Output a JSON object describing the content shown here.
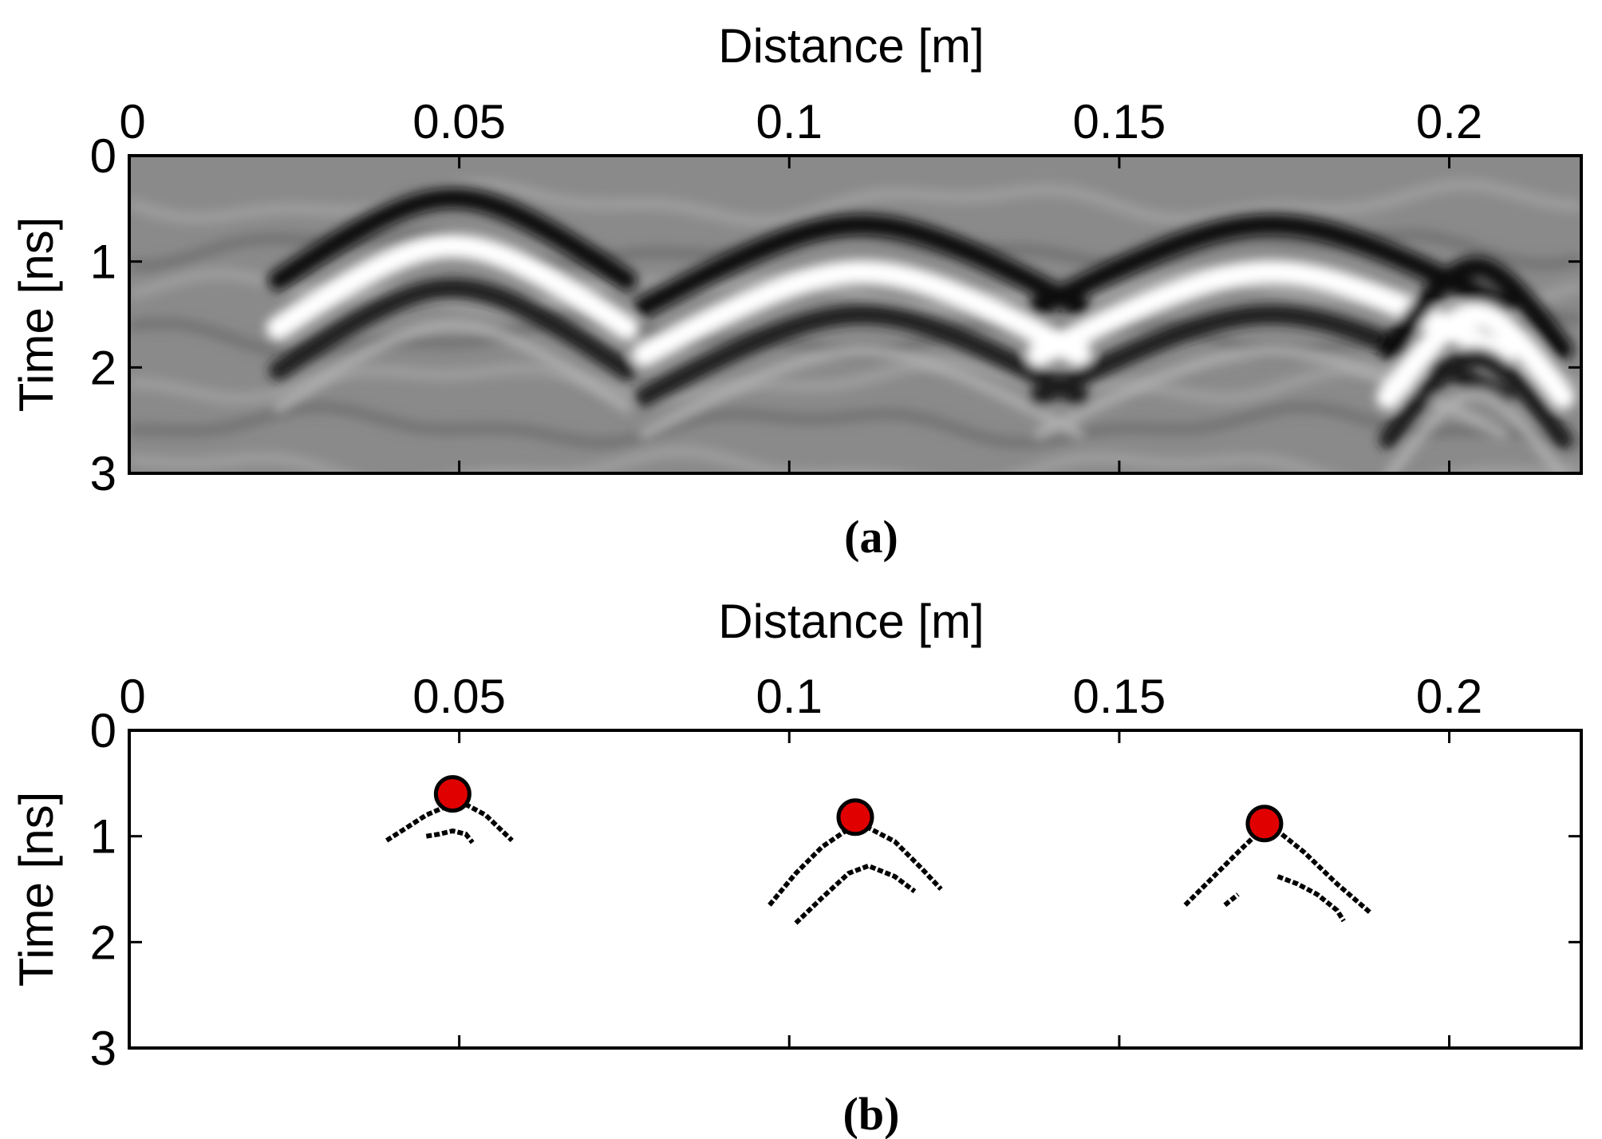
{
  "chart_data": [
    {
      "type": "heatmap",
      "panel_label": "(a)",
      "xlabel": "Distance [m]",
      "ylabel": "Time [ns]",
      "xlim": [
        0,
        0.22
      ],
      "ylim": [
        3,
        0
      ],
      "x_ticks": [
        0,
        0.05,
        0.1,
        0.15,
        0.2
      ],
      "x_tick_labels": [
        "0",
        "0.05",
        "0.1",
        "0.15",
        "0.2"
      ],
      "y_ticks": [
        0,
        1,
        2,
        3
      ],
      "y_tick_labels": [
        "0",
        "1",
        "2",
        "3"
      ],
      "x_axis_position": "top",
      "colormap": "grayscale",
      "hyperbolas": [
        {
          "apex_x": 0.049,
          "apex_t": 0.85,
          "spread": 0.012
        },
        {
          "apex_x": 0.111,
          "apex_t": 1.1,
          "spread": 0.015
        },
        {
          "apex_x": 0.173,
          "apex_t": 1.1,
          "spread": 0.016
        },
        {
          "apex_x": 0.204,
          "apex_t": 1.5,
          "spread": 0.006
        }
      ]
    },
    {
      "type": "scatter",
      "panel_label": "(b)",
      "xlabel": "Distance [m]",
      "ylabel": "Time [ns]",
      "xlim": [
        0,
        0.22
      ],
      "ylim": [
        3,
        0
      ],
      "x_ticks": [
        0,
        0.05,
        0.1,
        0.15,
        0.2
      ],
      "x_tick_labels": [
        "0",
        "0.05",
        "0.1",
        "0.15",
        "0.2"
      ],
      "y_ticks": [
        0,
        1,
        2,
        3
      ],
      "y_tick_labels": [
        "0",
        "1",
        "2",
        "3"
      ],
      "x_axis_position": "top",
      "apex_points": [
        {
          "x": 0.049,
          "t": 0.6
        },
        {
          "x": 0.11,
          "t": 0.82
        },
        {
          "x": 0.172,
          "t": 0.88
        }
      ],
      "edge_curves": [
        {
          "x": [
            0.039,
            0.042,
            0.045,
            0.048,
            0.051,
            0.054,
            0.056,
            0.058
          ],
          "t": [
            1.04,
            0.92,
            0.8,
            0.72,
            0.7,
            0.8,
            0.92,
            1.04
          ]
        },
        {
          "x": [
            0.045,
            0.047,
            0.049,
            0.051,
            0.052
          ],
          "t": [
            1.0,
            0.98,
            0.95,
            0.98,
            1.06
          ]
        },
        {
          "x": [
            0.097,
            0.101,
            0.105,
            0.109,
            0.112,
            0.116,
            0.12,
            0.123
          ],
          "t": [
            1.65,
            1.35,
            1.1,
            0.93,
            0.92,
            1.05,
            1.3,
            1.5
          ]
        },
        {
          "x": [
            0.101,
            0.105,
            0.109,
            0.112,
            0.116,
            0.119
          ],
          "t": [
            1.82,
            1.58,
            1.35,
            1.28,
            1.38,
            1.52
          ]
        },
        {
          "x": [
            0.16,
            0.164,
            0.168,
            0.171,
            0.174,
            0.178,
            0.183,
            0.188
          ],
          "t": [
            1.65,
            1.4,
            1.15,
            0.97,
            0.95,
            1.15,
            1.45,
            1.72
          ]
        },
        {
          "x": [
            0.166,
            0.168
          ],
          "t": [
            1.65,
            1.55
          ]
        },
        {
          "x": [
            0.174,
            0.177,
            0.18,
            0.183,
            0.184
          ],
          "t": [
            1.38,
            1.45,
            1.55,
            1.7,
            1.8
          ]
        }
      ],
      "apex_color": "#e00000"
    }
  ]
}
